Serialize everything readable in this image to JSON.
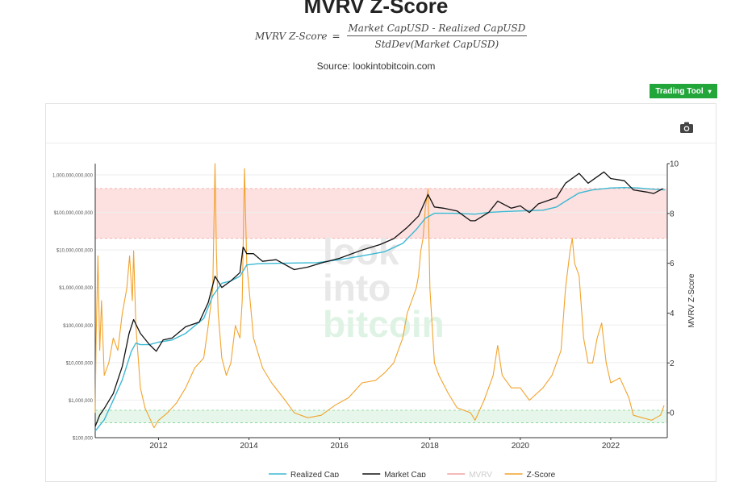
{
  "header": {
    "title": "MVRV Z-Score",
    "formula_lhs": "MVRV Z-Score",
    "formula_eq": "=",
    "formula_numerator": "Market CapUSD - Realized CapUSD",
    "formula_denominator": "StdDev(Market CapUSD)",
    "source": "Source: lookintobitcoin.com"
  },
  "toolbar": {
    "trading_tool_label": "Trading Tool",
    "caret": "▾"
  },
  "icons": {
    "camera": "camera-icon"
  },
  "colors": {
    "realized_cap": "#3bb9d3",
    "market_cap": "#111111",
    "mvrv": "#f2a3a3",
    "z_score": "#f2a32c",
    "upper_band": "#fde0e0",
    "lower_band": "#e6f6ea",
    "trading_button": "#22a63a"
  },
  "watermark": [
    "look",
    "into",
    "bitcoin"
  ],
  "chart_data": {
    "type": "line",
    "title": "",
    "xlabel": "",
    "ylabel_right": "MVRV Z-Score",
    "x_ticks": [
      "2012",
      "2014",
      "2016",
      "2018",
      "2020",
      "2022"
    ],
    "x_range": [
      2010.6,
      2023.25
    ],
    "y_left_scale": "log",
    "y_left_ticks": [
      "$100,000",
      "$1,000,000",
      "$10,000,000",
      "$100,000,000",
      "$1,000,000,000",
      "$10,000,000,000",
      "$100,000,000,000",
      "1,000,000,000,000"
    ],
    "y_left_range": [
      100000,
      2000000000000
    ],
    "y_right_ticks": [
      "0",
      "2",
      "4",
      "6",
      "8",
      "10"
    ],
    "y_right_range": [
      -1,
      10
    ],
    "bands": {
      "upper": [
        7,
        9
      ],
      "lower": [
        -0.4,
        0.1
      ]
    },
    "legend_position": "bottom",
    "series": [
      {
        "name": "Realized Cap",
        "axis": "left",
        "x": [
          2010.6,
          2010.8,
          2011.0,
          2011.2,
          2011.4,
          2011.5,
          2011.6,
          2011.8,
          2012.0,
          2012.3,
          2012.6,
          2013.0,
          2013.2,
          2013.4,
          2013.6,
          2013.8,
          2013.95,
          2014.2,
          2014.5,
          2015.0,
          2015.5,
          2016.0,
          2016.5,
          2017.0,
          2017.4,
          2017.7,
          2017.9,
          2018.1,
          2018.5,
          2019.0,
          2019.3,
          2019.6,
          2020.0,
          2020.5,
          2020.8,
          2021.0,
          2021.3,
          2021.6,
          2022.0,
          2022.3,
          2022.6,
          2022.9,
          2023.2
        ],
        "values": [
          150000,
          300000,
          1000000,
          3500000,
          20000000,
          33000000,
          30000000,
          30000000,
          35000000,
          40000000,
          60000000,
          150000000,
          600000000,
          1300000000,
          1500000000,
          2000000000,
          4000000000,
          4300000000,
          4400000000,
          4500000000,
          4600000000,
          5500000000,
          7000000000,
          9000000000,
          15000000000,
          35000000000,
          70000000000,
          95000000000,
          95000000000,
          90000000000,
          100000000000,
          105000000000,
          110000000000,
          115000000000,
          140000000000,
          200000000000,
          330000000000,
          400000000000,
          450000000000,
          460000000000,
          450000000000,
          420000000000,
          400000000000
        ]
      },
      {
        "name": "Market Cap",
        "axis": "left",
        "x": [
          2010.6,
          2010.7,
          2010.8,
          2011.0,
          2011.2,
          2011.35,
          2011.45,
          2011.6,
          2011.8,
          2011.95,
          2012.1,
          2012.3,
          2012.6,
          2012.9,
          2013.1,
          2013.25,
          2013.4,
          2013.6,
          2013.8,
          2013.87,
          2013.95,
          2014.1,
          2014.3,
          2014.6,
          2015.0,
          2015.3,
          2015.6,
          2016.0,
          2016.5,
          2016.9,
          2017.2,
          2017.5,
          2017.75,
          2017.96,
          2018.1,
          2018.3,
          2018.6,
          2018.9,
          2019.0,
          2019.3,
          2019.5,
          2019.8,
          2020.0,
          2020.2,
          2020.4,
          2020.8,
          2021.0,
          2021.3,
          2021.5,
          2021.85,
          2022.0,
          2022.3,
          2022.5,
          2022.8,
          2022.95,
          2023.15
        ],
        "values": [
          200000,
          400000,
          600000,
          1500000,
          8000000,
          60000000,
          140000000,
          60000000,
          30000000,
          20000000,
          40000000,
          45000000,
          90000000,
          120000000,
          400000000,
          2000000000,
          1000000000,
          1500000000,
          2500000000,
          12000000000,
          8000000000,
          8000000000,
          5000000000,
          5500000000,
          3000000000,
          3500000000,
          4500000000,
          6000000000,
          10000000000,
          14000000000,
          20000000000,
          40000000000,
          80000000000,
          300000000000,
          140000000000,
          130000000000,
          110000000000,
          60000000000,
          60000000000,
          100000000000,
          200000000000,
          130000000000,
          150000000000,
          100000000000,
          170000000000,
          250000000000,
          600000000000,
          1100000000000,
          600000000000,
          1200000000000,
          800000000000,
          700000000000,
          400000000000,
          350000000000,
          320000000000,
          430000000000
        ]
      },
      {
        "name": "MVRV",
        "axis": "right",
        "hidden": true,
        "x": [],
        "values": []
      },
      {
        "name": "Z-Score",
        "axis": "right",
        "x": [
          2010.6,
          2010.62,
          2010.66,
          2010.7,
          2010.74,
          2010.8,
          2010.9,
          2011.0,
          2011.1,
          2011.2,
          2011.3,
          2011.36,
          2011.42,
          2011.45,
          2011.5,
          2011.6,
          2011.7,
          2011.8,
          2011.9,
          2012.0,
          2012.2,
          2012.4,
          2012.6,
          2012.8,
          2013.0,
          2013.1,
          2013.2,
          2013.25,
          2013.28,
          2013.32,
          2013.4,
          2013.5,
          2013.6,
          2013.7,
          2013.8,
          2013.85,
          2013.9,
          2013.95,
          2014.1,
          2014.3,
          2014.5,
          2014.8,
          2015.0,
          2015.3,
          2015.6,
          2015.9,
          2016.2,
          2016.5,
          2016.8,
          2017.0,
          2017.2,
          2017.4,
          2017.5,
          2017.6,
          2017.7,
          2017.75,
          2017.8,
          2017.85,
          2017.9,
          2017.96,
          2018.0,
          2018.1,
          2018.2,
          2018.4,
          2018.6,
          2018.9,
          2019.0,
          2019.2,
          2019.4,
          2019.5,
          2019.6,
          2019.8,
          2020.0,
          2020.2,
          2020.5,
          2020.7,
          2020.9,
          2021.0,
          2021.1,
          2021.15,
          2021.2,
          2021.3,
          2021.4,
          2021.5,
          2021.6,
          2021.7,
          2021.8,
          2021.9,
          2022.0,
          2022.2,
          2022.4,
          2022.5,
          2022.7,
          2022.9,
          2023.0,
          2023.1,
          2023.18
        ],
        "values": [
          0.0,
          3.0,
          6.3,
          2.5,
          4.5,
          1.5,
          2.0,
          3.0,
          2.5,
          4.0,
          5.0,
          6.3,
          4.5,
          6.5,
          3.5,
          1.0,
          0.2,
          -0.2,
          -0.6,
          -0.3,
          0.0,
          0.4,
          1.0,
          1.8,
          2.2,
          3.5,
          5.0,
          10.0,
          6.5,
          4.0,
          2.2,
          1.5,
          2.0,
          3.5,
          3.0,
          4.5,
          9.8,
          6.0,
          3.0,
          1.8,
          1.2,
          0.5,
          0.0,
          -0.2,
          -0.1,
          0.3,
          0.6,
          1.2,
          1.3,
          1.6,
          2.0,
          3.0,
          4.0,
          4.5,
          5.0,
          5.5,
          6.5,
          7.0,
          8.2,
          9.0,
          5.0,
          2.0,
          1.5,
          0.8,
          0.2,
          0.0,
          -0.3,
          0.5,
          1.5,
          2.7,
          1.5,
          1.0,
          1.0,
          0.5,
          1.0,
          1.5,
          2.5,
          5.0,
          6.5,
          7.0,
          6.0,
          5.5,
          3.0,
          2.0,
          2.0,
          3.0,
          3.6,
          2.0,
          1.2,
          1.4,
          0.6,
          -0.1,
          -0.2,
          -0.3,
          -0.2,
          -0.1,
          0.3
        ]
      }
    ]
  }
}
